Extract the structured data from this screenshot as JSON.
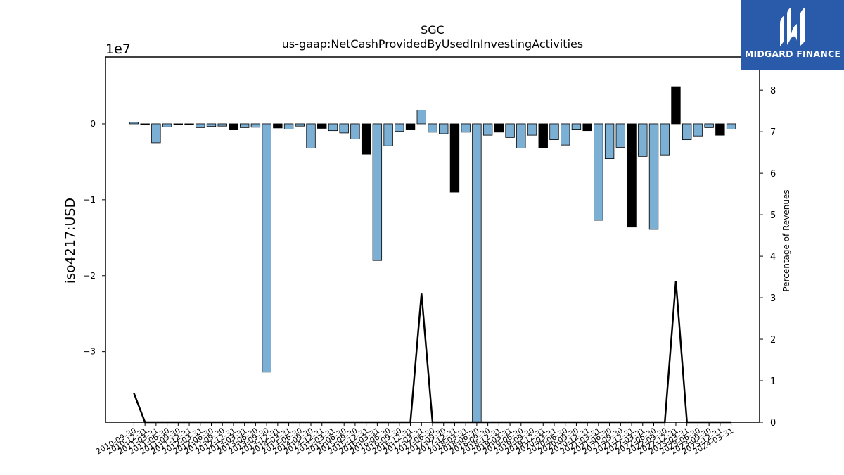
{
  "chart_data": {
    "type": "bar",
    "title": "SGC",
    "subtitle": "us-gaap:NetCashProvidedByUsedInInvestingActivities",
    "ylabel": "iso4217:USD",
    "y_scale_label": "1e7",
    "y2label": "Percentage of Revenues",
    "ylim": [
      -39300000,
      8800000
    ],
    "y2lim": [
      0,
      8.8
    ],
    "yticks": [
      0,
      -1,
      -2,
      -3
    ],
    "yticks_multiplier": 10000000,
    "y2ticks": [
      0,
      1,
      2,
      3,
      4,
      5,
      6,
      7,
      8
    ],
    "categories": [
      "2010-09-30",
      "2010-12-31",
      "2011-03-31",
      "2011-06-30",
      "2011-09-30",
      "2011-12-31",
      "2012-03-31",
      "2012-06-30",
      "2012-09-30",
      "2012-12-31",
      "2013-03-31",
      "2013-06-30",
      "2013-09-30",
      "2013-12-31",
      "2014-03-31",
      "2014-06-30",
      "2014-09-30",
      "2014-12-31",
      "2015-03-31",
      "2015-06-30",
      "2015-09-30",
      "2015-12-31",
      "2016-03-31",
      "2016-06-30",
      "2016-09-30",
      "2016-12-31",
      "2017-03-31",
      "2017-06-30",
      "2017-09-30",
      "2017-12-31",
      "2018-03-31",
      "2018-06-30",
      "2018-09-30",
      "2018-12-31",
      "2019-03-31",
      "2019-06-30",
      "2019-09-30",
      "2019-12-31",
      "2020-03-31",
      "2020-06-30",
      "2020-09-30",
      "2020-12-31",
      "2021-03-31",
      "2021-06-30",
      "2021-09-30",
      "2021-12-31",
      "2022-03-31",
      "2022-06-30",
      "2022-09-30",
      "2022-12-31",
      "2023-03-31",
      "2023-06-30",
      "2023-09-30",
      "2023-12-31",
      "2024-03-31"
    ],
    "xtick_labels": [
      "2010-09-30",
      "2010-12-31",
      "2011-03-31",
      "2011-06-30",
      "2011-09-30",
      "2011-12-31",
      "2012-03-31",
      "2012-06-30",
      "2012-09-30",
      "2012-12-31",
      "2013-03-31",
      "2013-06-30",
      "2013-09-30",
      "2013-12-31",
      "2014-03-31",
      "2014-06-30",
      "2014-09-30",
      "2014-12-31",
      "2015-03-31",
      "2015-06-30",
      "2015-09-30",
      "2015-12-31",
      "2016-03-31",
      "2016-06-30",
      "2016-09-30",
      "2016-12-31",
      "2017-03-31",
      "2017-06-30",
      "2017-09-30",
      "2017-12-31",
      "2018-03-31",
      "2018-06-30",
      "2018-09-30",
      "2018-12-31",
      "2019-03-31",
      "2019-06-30",
      "2019-09-30",
      "2019-12-31",
      "2020-03-31",
      "2020-06-30",
      "2020-09-30",
      "2020-12-31",
      "2021-03-31",
      "2021-06-30",
      "2021-09-30",
      "2021-12-31",
      "2022-03-31",
      "2022-06-30",
      "2022-09-30",
      "2022-12-31",
      "2023-03-31",
      "2023-06-30",
      "2023-09-30",
      "2023-12-31",
      "2024-03-31"
    ],
    "values": [
      200000,
      -100000,
      -2500000,
      -400000,
      -100000,
      -100000,
      -500000,
      -350000,
      -300000,
      -800000,
      -500000,
      -450000,
      -32700000,
      -550000,
      -700000,
      -300000,
      -3200000,
      -600000,
      -900000,
      -1200000,
      -2000000,
      -4000000,
      -18000000,
      -2900000,
      -1000000,
      -800000,
      1800000,
      -1100000,
      -1300000,
      -9000000,
      -1100000,
      -39300000,
      -1500000,
      -1100000,
      -1800000,
      -3200000,
      -1500000,
      -3200000,
      -2100000,
      -2800000,
      -800000,
      -900000,
      -12700000,
      -4600000,
      -3100000,
      -13600000,
      -4300000,
      -13900000,
      -4100000,
      4900000,
      -2100000,
      -1600000,
      -500000,
      -1500000,
      -700000
    ],
    "bar_colors": [
      "#7bafd4",
      "#000000",
      "#7bafd4",
      "#7bafd4",
      "#000000",
      "#000000",
      "#7bafd4",
      "#7bafd4",
      "#7bafd4",
      "#000000",
      "#7bafd4",
      "#7bafd4",
      "#7bafd4",
      "#000000",
      "#7bafd4",
      "#7bafd4",
      "#7bafd4",
      "#000000",
      "#7bafd4",
      "#7bafd4",
      "#7bafd4",
      "#000000",
      "#7bafd4",
      "#7bafd4",
      "#7bafd4",
      "#000000",
      "#7bafd4",
      "#7bafd4",
      "#7bafd4",
      "#000000",
      "#7bafd4",
      "#7bafd4",
      "#7bafd4",
      "#000000",
      "#7bafd4",
      "#7bafd4",
      "#7bafd4",
      "#000000",
      "#7bafd4",
      "#7bafd4",
      "#7bafd4",
      "#000000",
      "#7bafd4",
      "#7bafd4",
      "#7bafd4",
      "#000000",
      "#7bafd4",
      "#7bafd4",
      "#7bafd4",
      "#000000",
      "#7bafd4",
      "#7bafd4",
      "#7bafd4",
      "#000000",
      "#7bafd4"
    ],
    "line_series": {
      "axis": "right",
      "color": "#000000",
      "values": [
        0.7,
        0,
        0,
        0,
        0,
        0,
        0,
        0,
        0,
        0,
        0,
        0,
        0,
        0,
        0,
        0,
        0,
        0,
        0,
        0,
        0,
        0,
        0,
        0,
        0,
        0,
        3.1,
        0,
        0,
        0,
        0,
        0,
        0,
        0,
        0,
        0,
        0,
        0,
        0,
        0,
        0,
        0,
        0,
        0,
        0,
        0,
        0,
        0,
        0,
        3.4,
        0,
        0,
        0,
        0,
        0
      ]
    },
    "grid": false,
    "legend": "none"
  },
  "logo": {
    "text": "MIDGARD FINANCE",
    "background": "#2a5bab"
  }
}
